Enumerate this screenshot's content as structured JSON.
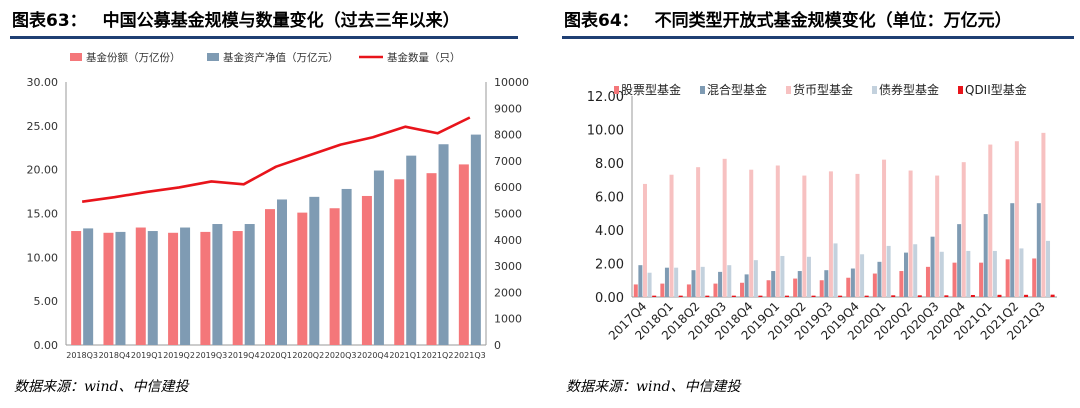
{
  "left": {
    "fig_label": "图表63：",
    "title": "中国公募基金规模与数量变化（过去三年以来）",
    "source": "数据来源：wind、中信建投",
    "colors": {
      "accent": "#1f3f73"
    }
  },
  "right": {
    "fig_label": "图表64：",
    "title": "不同类型开放式基金规模变化（单位：万亿元）",
    "source": "数据来源：wind、中信建投",
    "colors": {
      "accent": "#1f3f73"
    }
  },
  "chart_data": [
    {
      "type": "bar",
      "categories": [
        "2018Q3",
        "2018Q4",
        "2019Q1",
        "2019Q2",
        "2019Q3",
        "2019Q4",
        "2020Q1",
        "2020Q2",
        "2020Q3",
        "2020Q4",
        "2021Q1",
        "2021Q2",
        "2021Q3"
      ],
      "series": [
        {
          "name": "基金份额（万亿份）",
          "type": "bar",
          "axis": "left",
          "color": "#f4777a",
          "values": [
            13.0,
            12.8,
            13.4,
            12.8,
            12.9,
            13.0,
            15.5,
            15.1,
            15.6,
            17.0,
            18.9,
            19.6,
            20.6
          ]
        },
        {
          "name": "基金资产净值（万亿元）",
          "type": "bar",
          "axis": "left",
          "color": "#7f9bb3",
          "values": [
            13.3,
            12.9,
            13.0,
            13.4,
            13.8,
            13.8,
            16.6,
            16.9,
            17.8,
            19.9,
            21.6,
            22.9,
            24.0
          ]
        },
        {
          "name": "基金数量（只）",
          "type": "line",
          "axis": "right",
          "color": "#e8141b",
          "values": [
            5450,
            5620,
            5820,
            5990,
            6220,
            6110,
            6780,
            7200,
            7620,
            7900,
            8300,
            8050,
            8650
          ]
        }
      ],
      "yleft": {
        "min": 0,
        "max": 30,
        "step": 5,
        "ticks": [
          "0.00",
          "5.00",
          "10.00",
          "15.00",
          "20.00",
          "25.00",
          "30.00"
        ]
      },
      "yright": {
        "min": 0,
        "max": 10000,
        "step": 1000,
        "ticks": [
          "0",
          "1000",
          "2000",
          "3000",
          "4000",
          "5000",
          "6000",
          "7000",
          "8000",
          "9000",
          "10000"
        ]
      },
      "grid": false,
      "legend": "top"
    },
    {
      "type": "bar",
      "categories": [
        "2017Q4",
        "2018Q1",
        "2018Q2",
        "2018Q3",
        "2018Q4",
        "2019Q1",
        "2019Q2",
        "2019Q3",
        "2019Q4",
        "2020Q1",
        "2020Q2",
        "2020Q3",
        "2020Q4",
        "2021Q1",
        "2021Q2",
        "2021Q3"
      ],
      "series": [
        {
          "name": "股票型基金",
          "color": "#f4777a",
          "values": [
            0.75,
            0.8,
            0.75,
            0.8,
            0.85,
            1.0,
            1.1,
            1.0,
            1.15,
            1.4,
            1.55,
            1.8,
            2.05,
            2.05,
            2.25,
            2.3
          ]
        },
        {
          "name": "混合型基金",
          "color": "#7f9bb3",
          "values": [
            1.9,
            1.75,
            1.6,
            1.5,
            1.35,
            1.55,
            1.55,
            1.6,
            1.7,
            2.1,
            2.65,
            3.6,
            4.35,
            4.95,
            5.6,
            5.6
          ]
        },
        {
          "name": "货币型基金",
          "color": "#f7c1c1",
          "values": [
            6.75,
            7.3,
            7.75,
            8.25,
            7.6,
            7.85,
            7.25,
            7.5,
            7.35,
            8.2,
            7.55,
            7.25,
            8.05,
            9.1,
            9.3,
            9.8
          ]
        },
        {
          "name": "债券型基金",
          "color": "#c3d1dd",
          "values": [
            1.45,
            1.75,
            1.8,
            1.9,
            2.2,
            2.45,
            2.4,
            3.2,
            2.55,
            3.05,
            3.15,
            2.7,
            2.75,
            2.75,
            2.9,
            3.35
          ]
        },
        {
          "name": "QDII型基金",
          "color": "#e8141b",
          "values": [
            0.08,
            0.08,
            0.08,
            0.08,
            0.08,
            0.08,
            0.08,
            0.08,
            0.08,
            0.1,
            0.1,
            0.1,
            0.12,
            0.13,
            0.13,
            0.14
          ]
        }
      ],
      "ylim": [
        0,
        12
      ],
      "yticks": [
        "0.00",
        "2.00",
        "4.00",
        "6.00",
        "8.00",
        "10.00",
        "12.00"
      ],
      "grid": false,
      "legend": "top"
    }
  ]
}
